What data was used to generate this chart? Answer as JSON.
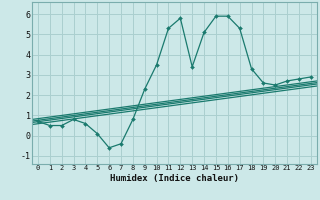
{
  "xlabel": "Humidex (Indice chaleur)",
  "ylabel": "",
  "bg_color": "#cce8e8",
  "grid_color": "#aacfcf",
  "line_color": "#1a7a6e",
  "xlim": [
    -0.5,
    23.5
  ],
  "ylim": [
    -1.4,
    6.6
  ],
  "xticks": [
    0,
    1,
    2,
    3,
    4,
    5,
    6,
    7,
    8,
    9,
    10,
    11,
    12,
    13,
    14,
    15,
    16,
    17,
    18,
    19,
    20,
    21,
    22,
    23
  ],
  "yticks": [
    -1,
    0,
    1,
    2,
    3,
    4,
    5,
    6
  ],
  "main_series": {
    "x": [
      0,
      1,
      2,
      3,
      4,
      5,
      6,
      7,
      8,
      9,
      10,
      11,
      12,
      13,
      14,
      15,
      16,
      17,
      18,
      19,
      20,
      21,
      22,
      23
    ],
    "y": [
      0.7,
      0.5,
      0.5,
      0.8,
      0.6,
      0.1,
      -0.6,
      -0.4,
      0.8,
      2.3,
      3.5,
      5.3,
      5.8,
      3.4,
      5.1,
      5.9,
      5.9,
      5.3,
      3.3,
      2.6,
      2.5,
      2.7,
      2.8,
      2.9
    ]
  },
  "linear_series": [
    [
      0.55,
      2.45
    ],
    [
      0.65,
      2.55
    ],
    [
      0.72,
      2.62
    ],
    [
      0.8,
      2.7
    ]
  ]
}
